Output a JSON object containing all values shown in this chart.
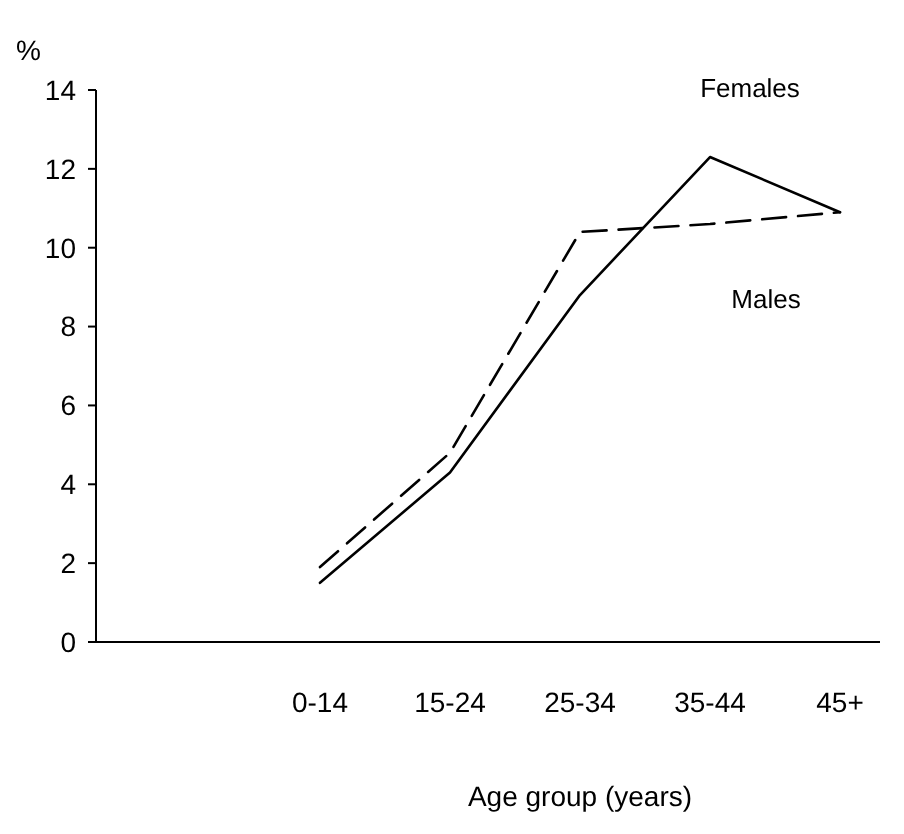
{
  "chart_data": {
    "type": "line",
    "ylabel": "%",
    "xlabel": "Age group (years)",
    "categories": [
      "0-14",
      "15-24",
      "25-34",
      "35-44",
      "45+"
    ],
    "series": [
      {
        "name": "Females",
        "color": "#000000",
        "line_style": "solid",
        "values": [
          1.5,
          4.3,
          8.8,
          12.3,
          10.9
        ]
      },
      {
        "name": "Males",
        "color": "#000000",
        "line_style": "dashed",
        "values": [
          1.9,
          4.8,
          10.4,
          10.6,
          10.9
        ]
      }
    ],
    "ylim": [
      0,
      14
    ],
    "yticks": [
      0,
      2,
      4,
      6,
      8,
      10,
      12,
      14
    ],
    "grid": false,
    "marker": "none"
  }
}
